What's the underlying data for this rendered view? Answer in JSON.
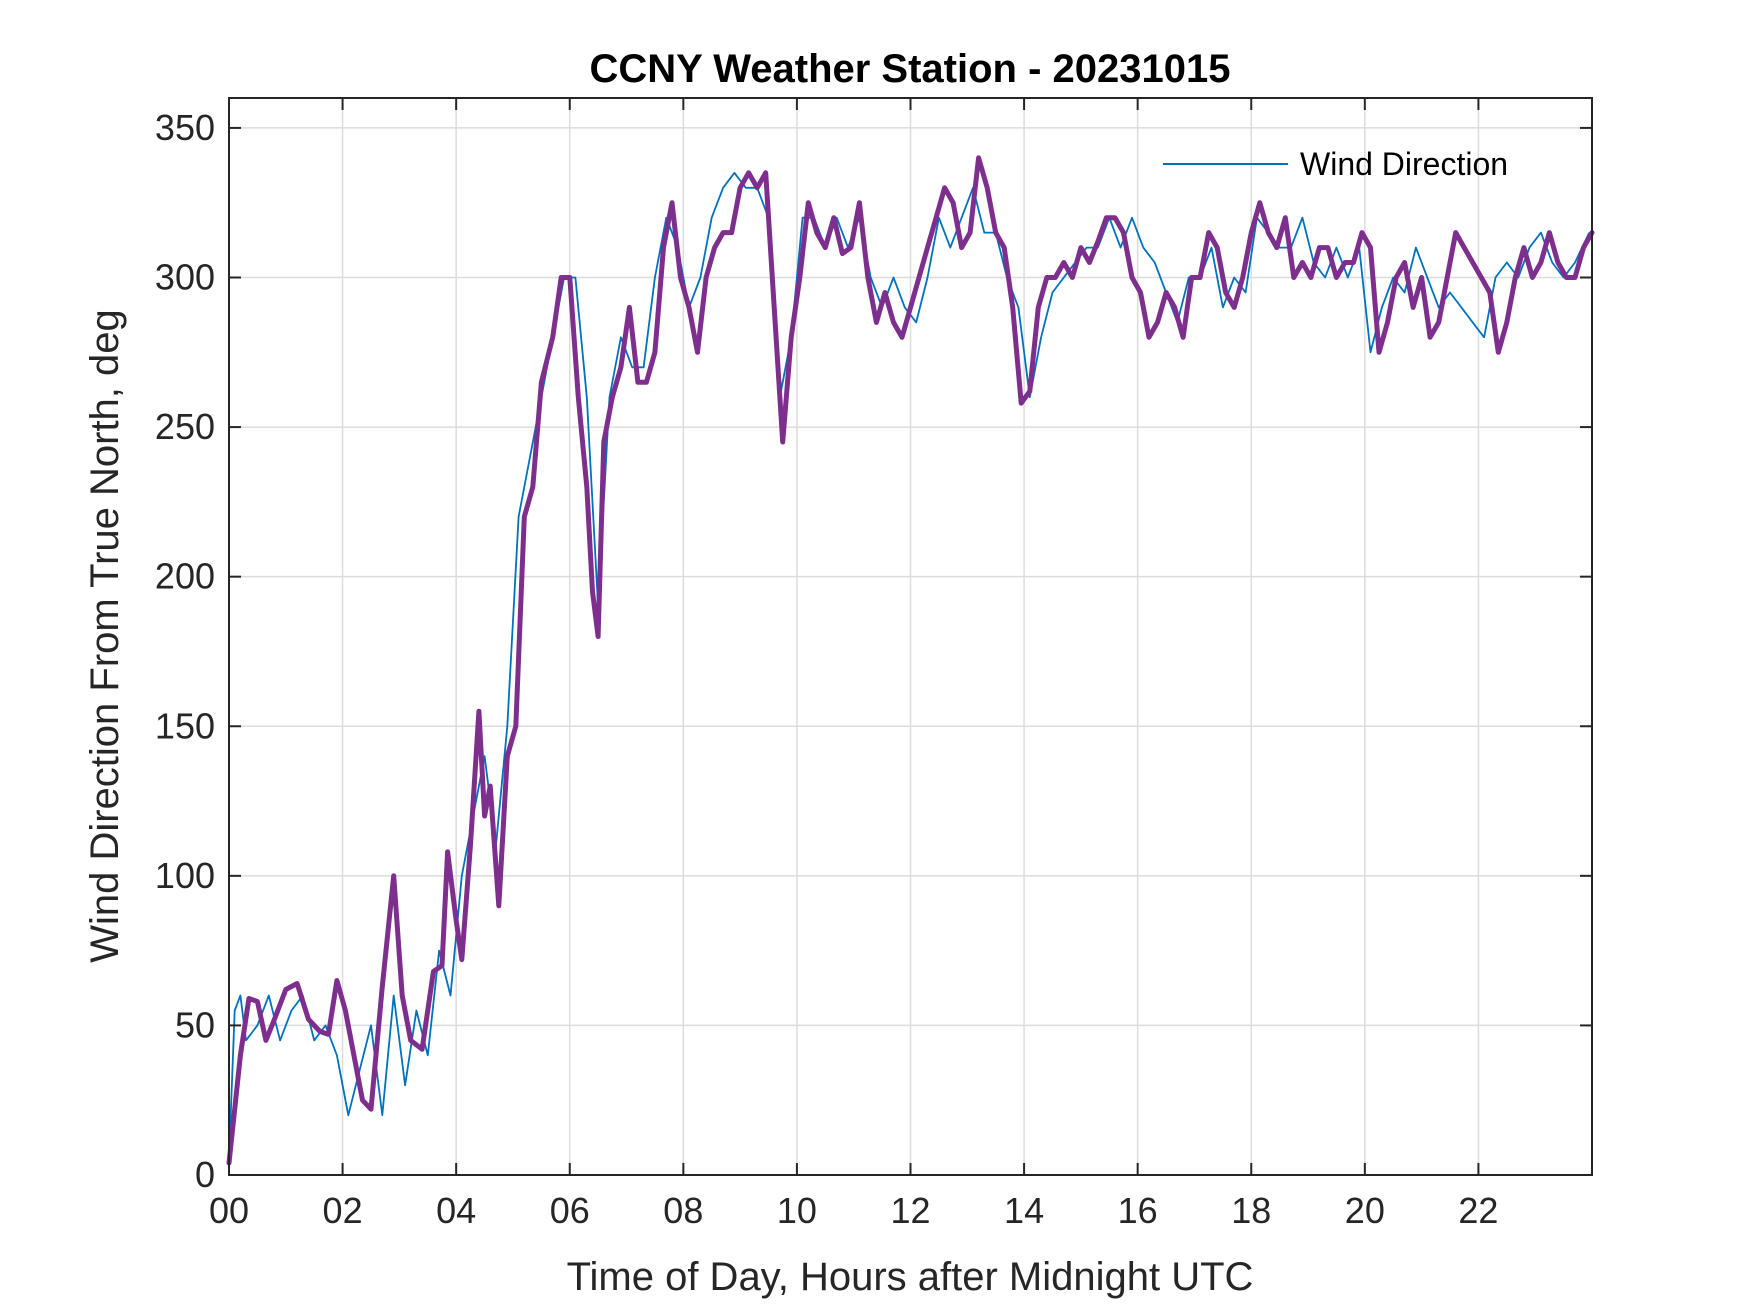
{
  "colors": {
    "raw_series": "#0072BD",
    "smoothed_series": "#7E2F8E",
    "axes": "#262626",
    "grid": "#dcdcdc"
  },
  "chart_data": {
    "type": "line",
    "title": "CCNY Weather Station - 20231015",
    "xlabel": "Time of Day, Hours after Midnight UTC",
    "ylabel": "Wind Direction From True North, deg",
    "xlim": [
      0,
      24
    ],
    "ylim": [
      0,
      360
    ],
    "xticks": [
      0,
      2,
      4,
      6,
      8,
      10,
      12,
      14,
      16,
      18,
      20,
      22
    ],
    "xtick_labels": [
      "00",
      "02",
      "04",
      "06",
      "08",
      "10",
      "12",
      "14",
      "16",
      "18",
      "20",
      "22"
    ],
    "yticks": [
      0,
      50,
      100,
      150,
      200,
      250,
      300,
      350
    ],
    "ytick_labels": [
      "0",
      "50",
      "100",
      "150",
      "200",
      "250",
      "300",
      "350"
    ],
    "grid": true,
    "legend_position": "top-right",
    "series": [
      {
        "name": "Wind Direction",
        "color": "#0072BD",
        "style": "thin line, high-frequency raw samples",
        "x": [
          0,
          0.1,
          0.2,
          0.3,
          0.5,
          0.7,
          0.9,
          1.1,
          1.3,
          1.5,
          1.7,
          1.9,
          2.1,
          2.3,
          2.5,
          2.7,
          2.9,
          3.1,
          3.3,
          3.5,
          3.7,
          3.9,
          4.1,
          4.3,
          4.5,
          4.7,
          4.9,
          5.1,
          5.3,
          5.5,
          5.7,
          5.9,
          6.1,
          6.3,
          6.5,
          6.7,
          6.9,
          7.1,
          7.3,
          7.5,
          7.7,
          7.9,
          8.1,
          8.3,
          8.5,
          8.7,
          8.9,
          9.1,
          9.3,
          9.5,
          9.7,
          9.9,
          10.1,
          10.3,
          10.5,
          10.7,
          10.9,
          11.1,
          11.3,
          11.5,
          11.7,
          11.9,
          12.1,
          12.3,
          12.5,
          12.7,
          12.9,
          13.1,
          13.3,
          13.5,
          13.7,
          13.9,
          14.1,
          14.3,
          14.5,
          14.7,
          14.9,
          15.1,
          15.3,
          15.5,
          15.7,
          15.9,
          16.1,
          16.3,
          16.5,
          16.7,
          16.9,
          17.1,
          17.3,
          17.5,
          17.7,
          17.9,
          18.1,
          18.3,
          18.5,
          18.7,
          18.9,
          19.1,
          19.3,
          19.5,
          19.7,
          19.9,
          20.1,
          20.3,
          20.5,
          20.7,
          20.9,
          21.1,
          21.3,
          21.5,
          21.7,
          21.9,
          22.1,
          22.3,
          22.5,
          22.7,
          22.9,
          23.1,
          23.3,
          23.5,
          23.7,
          23.95
        ],
        "y": [
          5,
          55,
          60,
          45,
          50,
          60,
          45,
          55,
          60,
          45,
          50,
          40,
          20,
          35,
          50,
          20,
          60,
          30,
          55,
          40,
          75,
          60,
          100,
          120,
          140,
          110,
          150,
          220,
          240,
          260,
          280,
          300,
          300,
          260,
          190,
          260,
          280,
          270,
          270,
          300,
          320,
          310,
          290,
          300,
          320,
          330,
          335,
          330,
          330,
          320,
          260,
          280,
          320,
          320,
          310,
          320,
          310,
          320,
          300,
          290,
          300,
          290,
          285,
          300,
          320,
          310,
          320,
          330,
          315,
          315,
          300,
          290,
          260,
          280,
          295,
          300,
          305,
          310,
          310,
          320,
          310,
          320,
          310,
          305,
          295,
          285,
          300,
          300,
          310,
          290,
          300,
          295,
          320,
          315,
          310,
          310,
          320,
          305,
          300,
          310,
          300,
          310,
          275,
          290,
          300,
          295,
          310,
          300,
          290,
          295,
          290,
          285,
          280,
          300,
          305,
          300,
          310,
          315,
          305,
          300,
          305,
          315
        ]
      },
      {
        "name": "",
        "color": "#7E2F8E",
        "style": "thick line, running mean",
        "x": [
          0,
          0.2,
          0.35,
          0.5,
          0.65,
          0.8,
          1.0,
          1.2,
          1.4,
          1.6,
          1.75,
          1.9,
          2.05,
          2.2,
          2.35,
          2.5,
          2.7,
          2.9,
          3.05,
          3.2,
          3.4,
          3.6,
          3.75,
          3.85,
          4.0,
          4.1,
          4.25,
          4.4,
          4.5,
          4.6,
          4.75,
          4.9,
          5.05,
          5.2,
          5.35,
          5.5,
          5.7,
          5.85,
          6.0,
          6.15,
          6.3,
          6.4,
          6.5,
          6.6,
          6.75,
          6.9,
          7.05,
          7.2,
          7.35,
          7.5,
          7.65,
          7.8,
          7.95,
          8.1,
          8.25,
          8.4,
          8.55,
          8.7,
          8.85,
          9.0,
          9.15,
          9.3,
          9.45,
          9.6,
          9.75,
          9.9,
          10.05,
          10.2,
          10.35,
          10.5,
          10.65,
          10.8,
          10.95,
          11.1,
          11.25,
          11.4,
          11.55,
          11.7,
          11.85,
          12.0,
          12.15,
          12.3,
          12.45,
          12.6,
          12.75,
          12.9,
          13.05,
          13.2,
          13.35,
          13.5,
          13.65,
          13.8,
          13.95,
          14.1,
          14.25,
          14.4,
          14.55,
          14.7,
          14.85,
          15.0,
          15.15,
          15.3,
          15.45,
          15.6,
          15.75,
          15.9,
          16.05,
          16.2,
          16.35,
          16.5,
          16.65,
          16.8,
          16.95,
          17.1,
          17.25,
          17.4,
          17.55,
          17.7,
          17.85,
          18.0,
          18.15,
          18.3,
          18.45,
          18.6,
          18.75,
          18.9,
          19.05,
          19.2,
          19.35,
          19.5,
          19.65,
          19.8,
          19.95,
          20.1,
          20.25,
          20.4,
          20.55,
          20.7,
          20.85,
          21.0,
          21.15,
          21.3,
          21.45,
          21.6,
          21.75,
          21.9,
          22.05,
          22.2,
          22.35,
          22.5,
          22.65,
          22.8,
          22.95,
          23.1,
          23.25,
          23.4,
          23.55,
          23.7,
          23.85,
          24.0
        ],
        "y": [
          4,
          40,
          59,
          58,
          45,
          52,
          62,
          64,
          52,
          48,
          47,
          65,
          55,
          40,
          25,
          22,
          63,
          100,
          60,
          45,
          42,
          68,
          70,
          108,
          85,
          72,
          110,
          155,
          120,
          130,
          90,
          140,
          150,
          220,
          230,
          265,
          280,
          300,
          300,
          260,
          230,
          195,
          180,
          245,
          260,
          270,
          290,
          265,
          265,
          275,
          310,
          325,
          300,
          290,
          275,
          300,
          310,
          315,
          315,
          330,
          335,
          330,
          335,
          290,
          245,
          280,
          300,
          325,
          315,
          310,
          320,
          308,
          310,
          325,
          300,
          285,
          295,
          285,
          280,
          290,
          300,
          310,
          320,
          330,
          325,
          310,
          315,
          340,
          330,
          315,
          310,
          290,
          258,
          262,
          290,
          300,
          300,
          305,
          300,
          310,
          305,
          312,
          320,
          320,
          315,
          300,
          295,
          280,
          285,
          295,
          290,
          280,
          300,
          300,
          315,
          310,
          295,
          290,
          300,
          315,
          325,
          315,
          310,
          320,
          300,
          305,
          300,
          310,
          310,
          300,
          305,
          305,
          315,
          310,
          275,
          285,
          300,
          305,
          290,
          300,
          280,
          285,
          300,
          315,
          310,
          305,
          300,
          295,
          275,
          285,
          300,
          310,
          300,
          305,
          315,
          305,
          300,
          300,
          310,
          315
        ]
      }
    ]
  }
}
